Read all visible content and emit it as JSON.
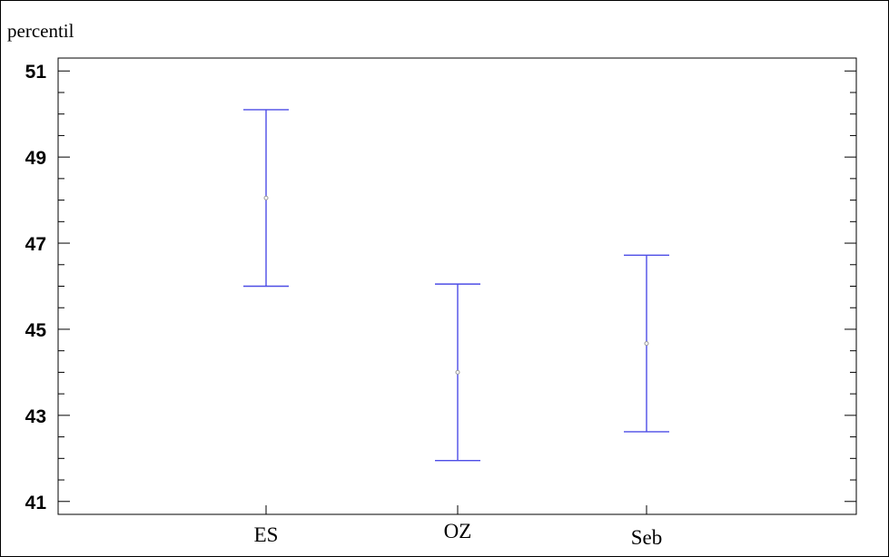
{
  "chart_data": {
    "type": "scatter",
    "title": "",
    "ylabel": "percentil",
    "xlabel": "",
    "categories": [
      "ES",
      "OZ",
      "Seb"
    ],
    "series": [
      {
        "values": [
          48.05,
          44.0,
          44.67
        ],
        "lower": [
          46.0,
          41.95,
          42.62
        ],
        "upper": [
          50.1,
          46.05,
          46.72
        ]
      }
    ],
    "ylim": [
      40.7,
      51.3
    ],
    "yticks": [
      41,
      43,
      45,
      47,
      49,
      51
    ],
    "ytick_labels": [
      "41",
      "43",
      "45",
      "47",
      "49",
      "51"
    ],
    "grid": false,
    "colors": {
      "errorbar": "#4d4de6",
      "point": "#9a9a9a",
      "axes": "#000000"
    }
  }
}
